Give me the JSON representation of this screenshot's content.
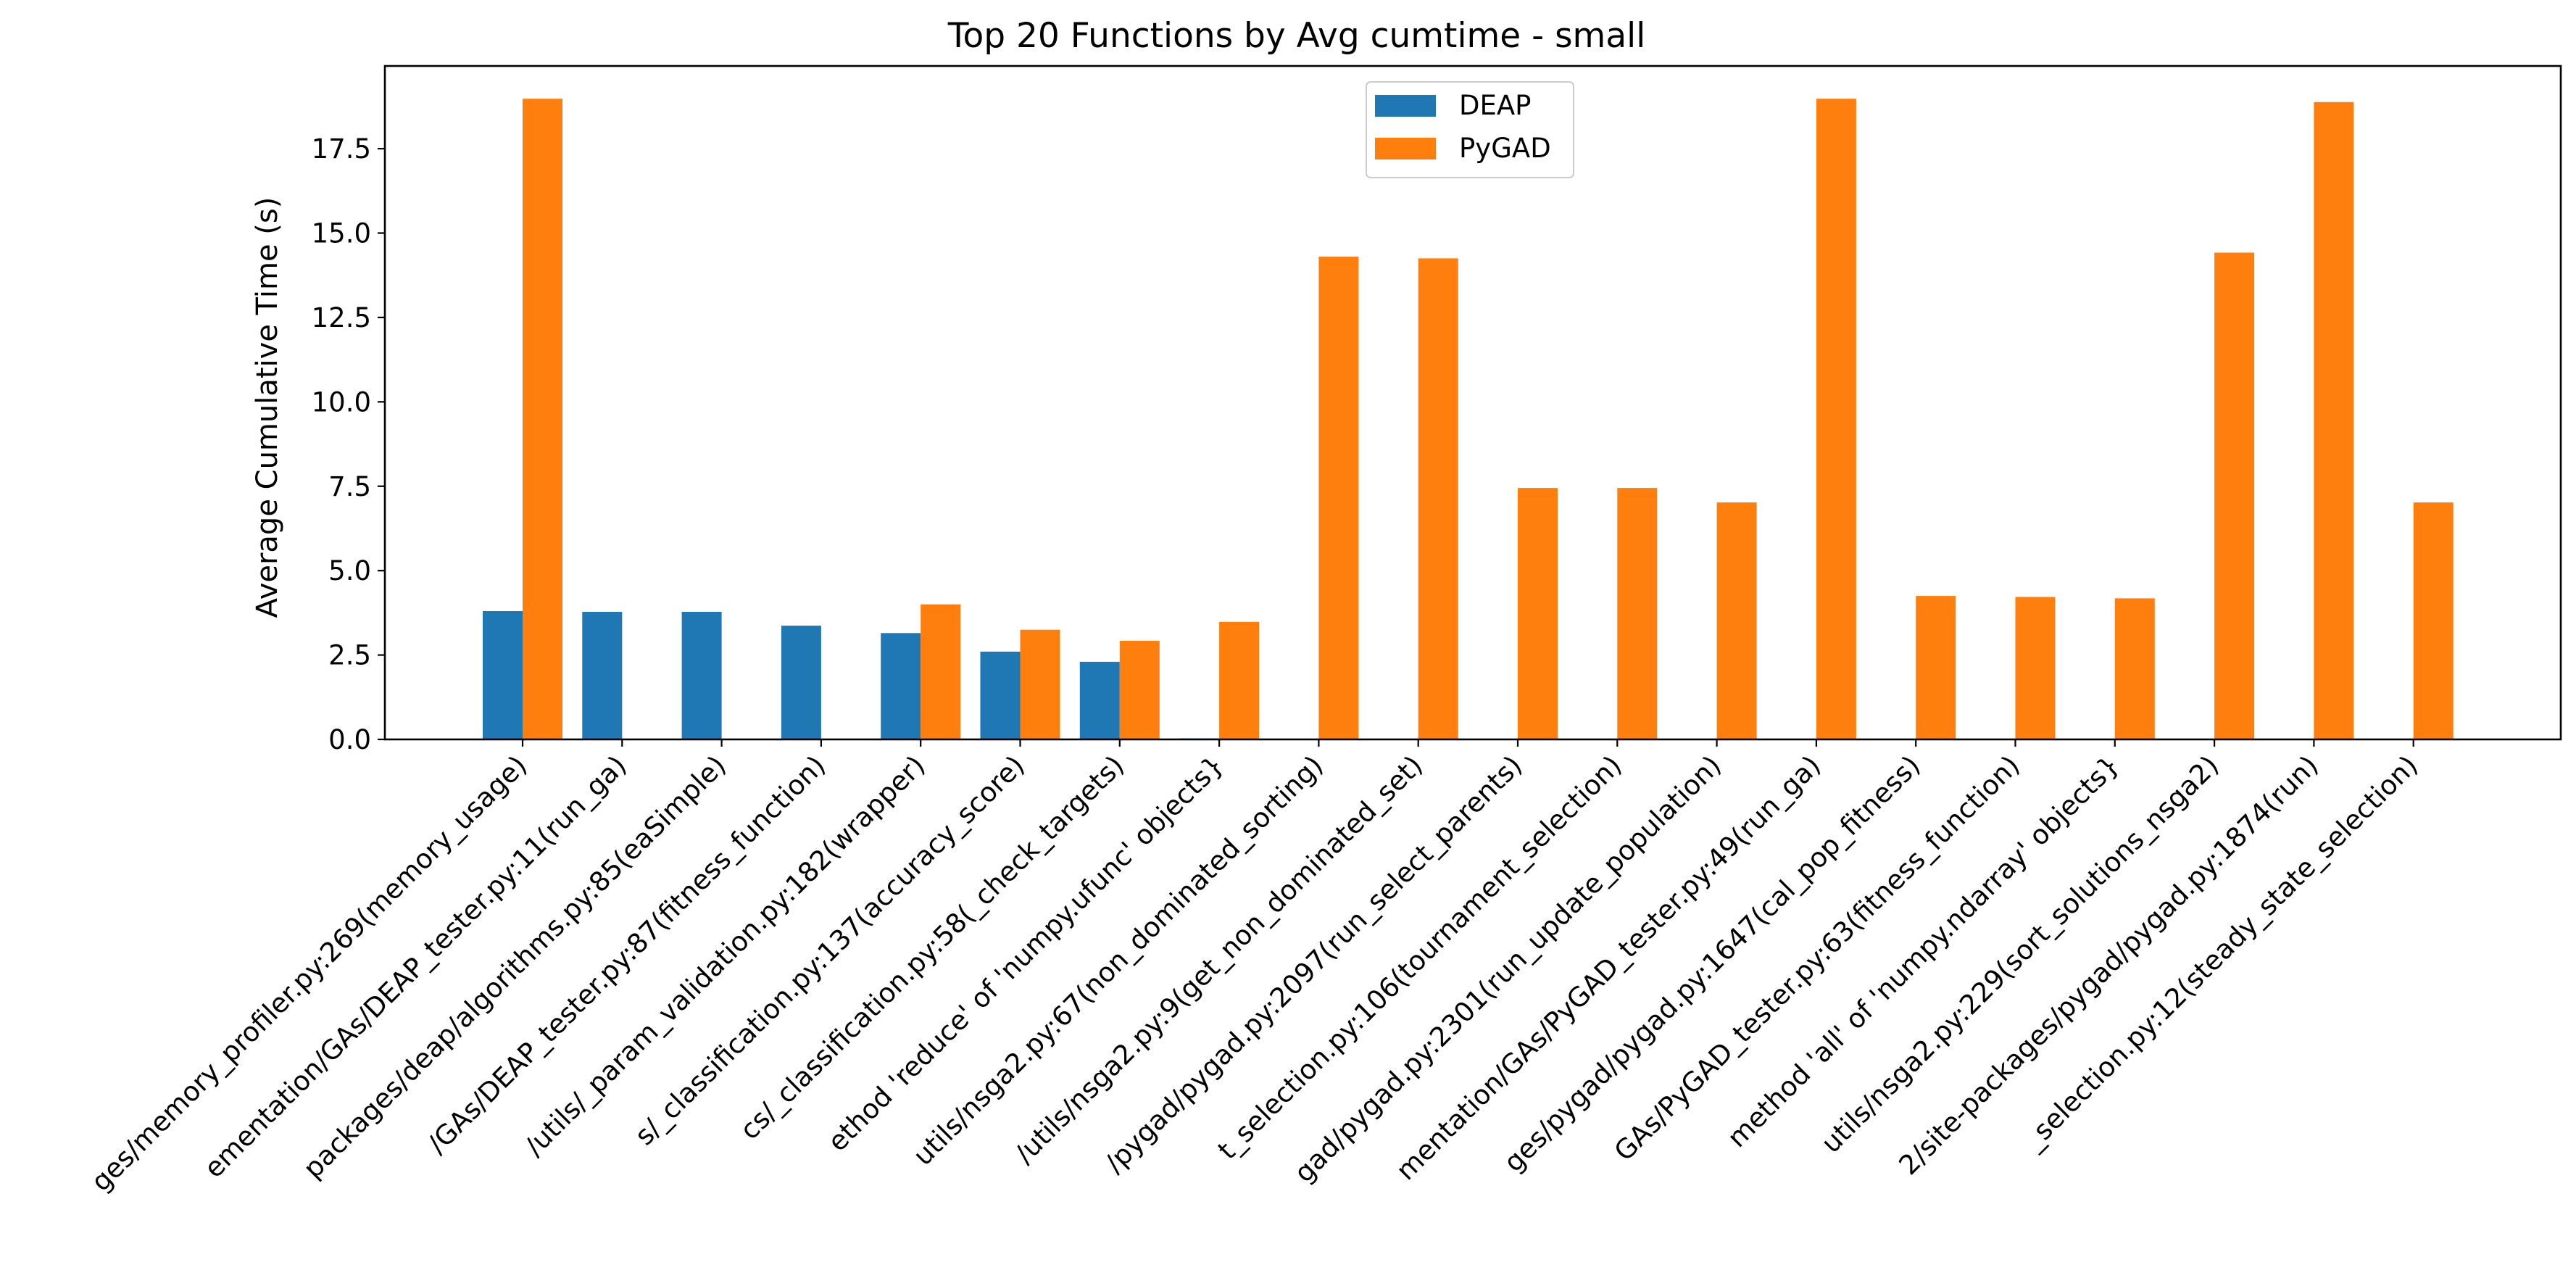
{
  "chart_data": {
    "type": "bar",
    "title": "Top 20 Functions by Avg cumtime - small",
    "xlabel": "",
    "ylabel": "Average Cumulative Time (s)",
    "ylim": [
      0,
      19.95
    ],
    "yticks": [
      0.0,
      2.5,
      5.0,
      7.5,
      10.0,
      12.5,
      15.0,
      17.5
    ],
    "ytick_labels": [
      "0.0",
      "2.5",
      "5.0",
      "7.5",
      "10.0",
      "12.5",
      "15.0",
      "17.5"
    ],
    "grid": false,
    "legend_position": "top-center",
    "categories": [
      "ges/memory_profiler.py:269(memory_usage)",
      "ementation/GAs/DEAP_tester.py:11(run_ga)",
      "packages/deap/algorithms.py:85(eaSimple)",
      "/GAs/DEAP_tester.py:87(fitness_function)",
      "/utils/_param_validation.py:182(wrapper)",
      "s/_classification.py:137(accuracy_score)",
      "cs/_classification.py:58(_check_targets)",
      "ethod 'reduce' of 'numpy.ufunc' objects}",
      "utils/nsga2.py:67(non_dominated_sorting)",
      "/utils/nsga2.py:9(get_non_dominated_set)",
      "/pygad/pygad.py:2097(run_select_parents)",
      "t_selection.py:106(tournament_selection)",
      "gad/pygad.py:2301(run_update_population)",
      "mentation/GAs/PyGAD_tester.py:49(run_ga)",
      "ges/pygad/pygad.py:1647(cal_pop_fitness)",
      "GAs/PyGAD_tester.py:63(fitness_function)",
      "method 'all' of 'numpy.ndarray' objects}",
      "utils/nsga2.py:229(sort_solutions_nsga2)",
      "2/site-packages/pygad/pygad.py:1874(run)",
      "_selection.py:12(steady_state_selection)"
    ],
    "series": [
      {
        "name": "DEAP",
        "color": "#1f77b4",
        "values": [
          3.8,
          3.78,
          3.78,
          3.37,
          3.15,
          2.6,
          2.3,
          0.03,
          0,
          0,
          0,
          0,
          0,
          0,
          0,
          0,
          0,
          0,
          0,
          0
        ]
      },
      {
        "name": "PyGAD",
        "color": "#ff7f0e",
        "values": [
          18.98,
          0,
          0,
          0,
          4.0,
          3.25,
          2.92,
          3.48,
          14.3,
          14.25,
          7.45,
          7.45,
          7.02,
          18.98,
          4.25,
          4.22,
          4.18,
          14.42,
          18.88,
          7.02
        ]
      }
    ]
  }
}
